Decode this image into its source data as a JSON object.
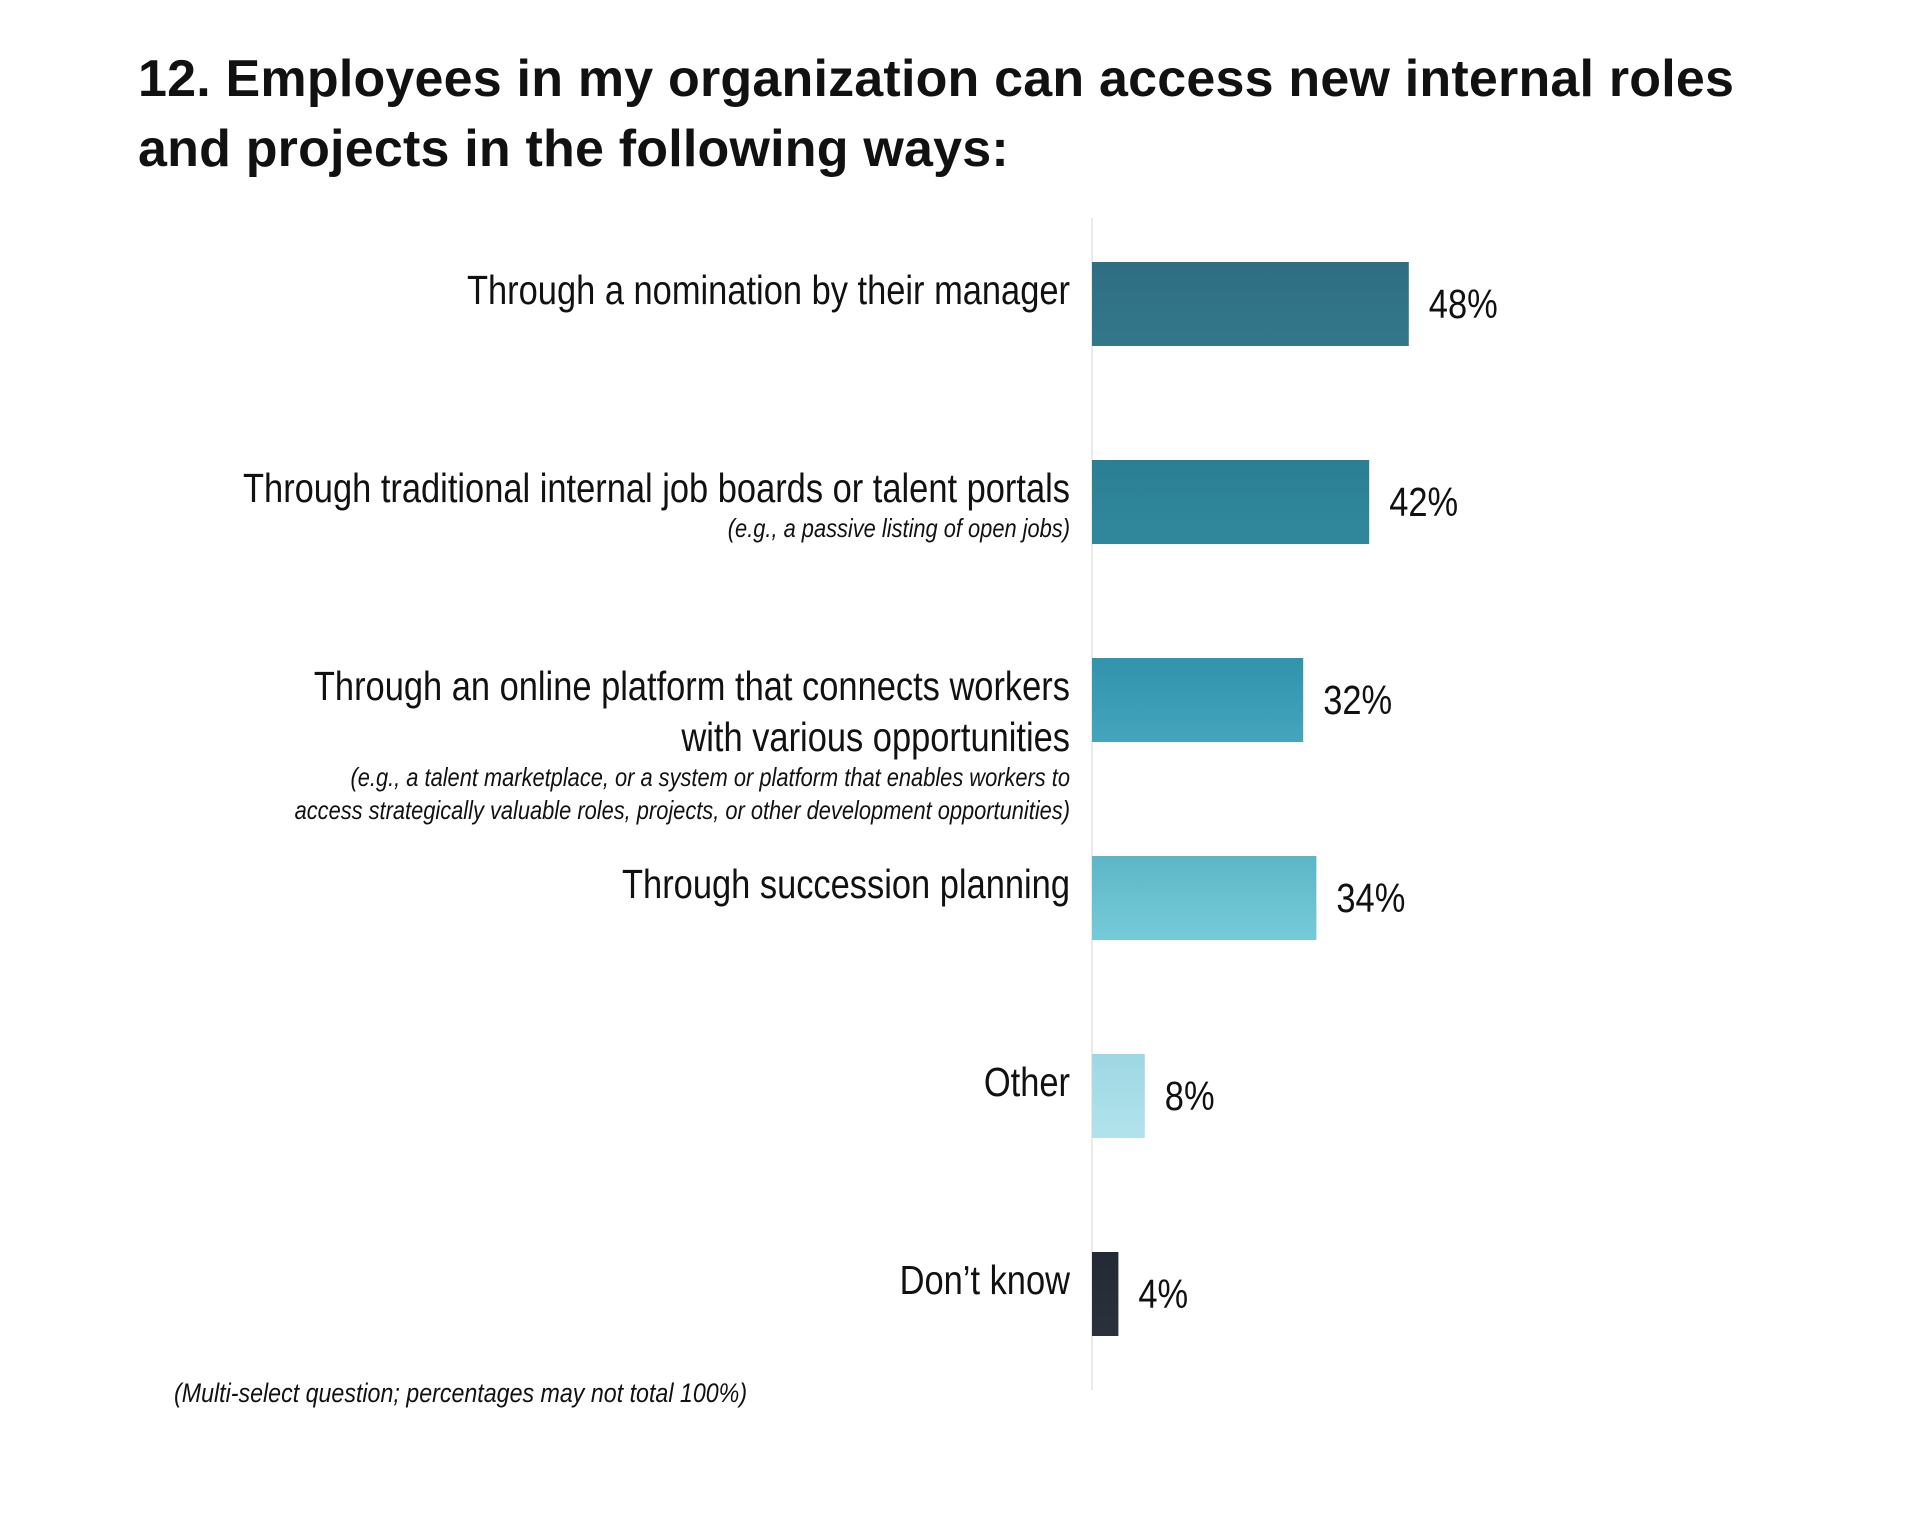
{
  "title": "12. Employees in my organization can access new internal roles and projects in the following ways:",
  "footnote": "(Multi-select question; percentages may not total 100%)",
  "chart_data": {
    "type": "bar",
    "orientation": "horizontal",
    "title": "12. Employees in my organization can access new internal roles and projects in the following ways:",
    "xlabel": "",
    "ylabel": "",
    "xlim": [
      0,
      100
    ],
    "grid": false,
    "legend": "none",
    "value_format": "percent",
    "categories": [
      {
        "label_lines": [
          "Through a nomination by their manager"
        ],
        "note_lines": [],
        "value": 48,
        "value_label": "48%",
        "color_top": "#2f6e82",
        "color_bottom": "#33778b"
      },
      {
        "label_lines": [
          "Through traditional internal job boards or talent portals"
        ],
        "note_lines": [
          "(e.g., a passive listing of open jobs)"
        ],
        "value": 42,
        "value_label": "42%",
        "color_top": "#2b7f94",
        "color_bottom": "#31889c"
      },
      {
        "label_lines": [
          "Through an online platform that connects workers",
          "with various opportunities"
        ],
        "note_lines": [
          "(e.g., a talent marketplace, or a system or platform that enables workers to",
          "access strategically valuable roles, projects, or other development opportunities)"
        ],
        "value": 32,
        "value_label": "32%",
        "color_top": "#3194ac",
        "color_bottom": "#44a5bd"
      },
      {
        "label_lines": [
          "Through succession planning"
        ],
        "note_lines": [],
        "value": 34,
        "value_label": "34%",
        "color_top": "#5cb6c6",
        "color_bottom": "#76cbd8"
      },
      {
        "label_lines": [
          "Other"
        ],
        "note_lines": [],
        "value": 8,
        "value_label": "8%",
        "color_top": "#9dd7e3",
        "color_bottom": "#b2e3ec"
      },
      {
        "label_lines": [
          "Don’t know"
        ],
        "note_lines": [],
        "value": 4,
        "value_label": "4%",
        "color_top": "#232a35",
        "color_bottom": "#2a313c"
      }
    ]
  },
  "colors": {
    "axis_line": "#e3e3e3",
    "text": "#111111"
  }
}
